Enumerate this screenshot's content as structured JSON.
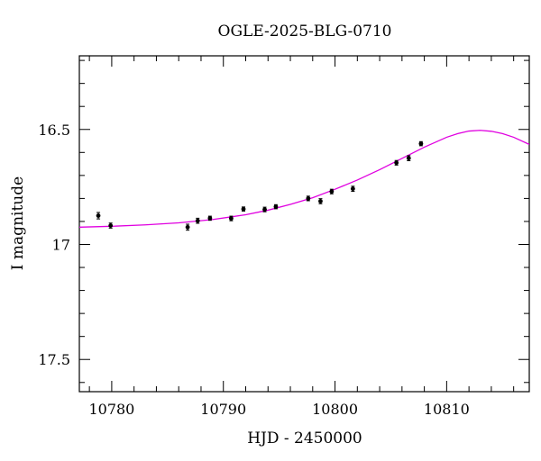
{
  "chart_data": {
    "type": "scatter",
    "title": "OGLE-2025-BLG-0710",
    "xlabel": "HJD - 2450000",
    "ylabel": "I magnitude",
    "xlim": [
      10777.1,
      10817.4
    ],
    "ylim": [
      17.64,
      16.18
    ],
    "y_inverted": true,
    "x_ticks": [
      10780,
      10790,
      10800,
      10810
    ],
    "x_tick_labels": [
      "10780",
      "10790",
      "10800",
      "10810"
    ],
    "y_ticks": [
      16.5,
      17,
      17.5
    ],
    "y_tick_labels": [
      "16.5",
      "17",
      "17.5"
    ],
    "grid": false,
    "colors": {
      "points": "#000000",
      "model": "#e000e0",
      "frame": "#000000"
    },
    "series": [
      {
        "kind": "points",
        "x": [
          10778.8,
          10779.9,
          10786.8,
          10787.7,
          10788.8,
          10790.7,
          10791.8,
          10793.7,
          10794.7,
          10797.6,
          10798.7,
          10799.7,
          10801.6,
          10805.5,
          10806.6,
          10807.7
        ],
        "y": [
          16.875,
          16.918,
          16.925,
          16.897,
          16.886,
          16.887,
          16.846,
          16.848,
          16.836,
          16.8,
          16.812,
          16.77,
          16.758,
          16.645,
          16.625,
          16.562
        ],
        "err": [
          0.014,
          0.011,
          0.013,
          0.011,
          0.009,
          0.01,
          0.009,
          0.01,
          0.009,
          0.01,
          0.011,
          0.01,
          0.011,
          0.01,
          0.011,
          0.009
        ]
      },
      {
        "kind": "model",
        "x": [
          10777.1,
          10780,
          10783,
          10786,
          10789,
          10792,
          10794,
          10796,
          10798,
          10800,
          10802,
          10804,
          10806,
          10808,
          10810,
          10811,
          10812,
          10813,
          10814,
          10815,
          10816,
          10817.4
        ],
        "y": [
          16.925,
          16.921,
          16.915,
          16.906,
          16.892,
          16.871,
          16.851,
          16.826,
          16.797,
          16.76,
          16.72,
          16.675,
          16.626,
          16.577,
          16.534,
          16.518,
          16.507,
          16.504,
          16.508,
          16.518,
          16.534,
          16.565
        ]
      }
    ]
  }
}
